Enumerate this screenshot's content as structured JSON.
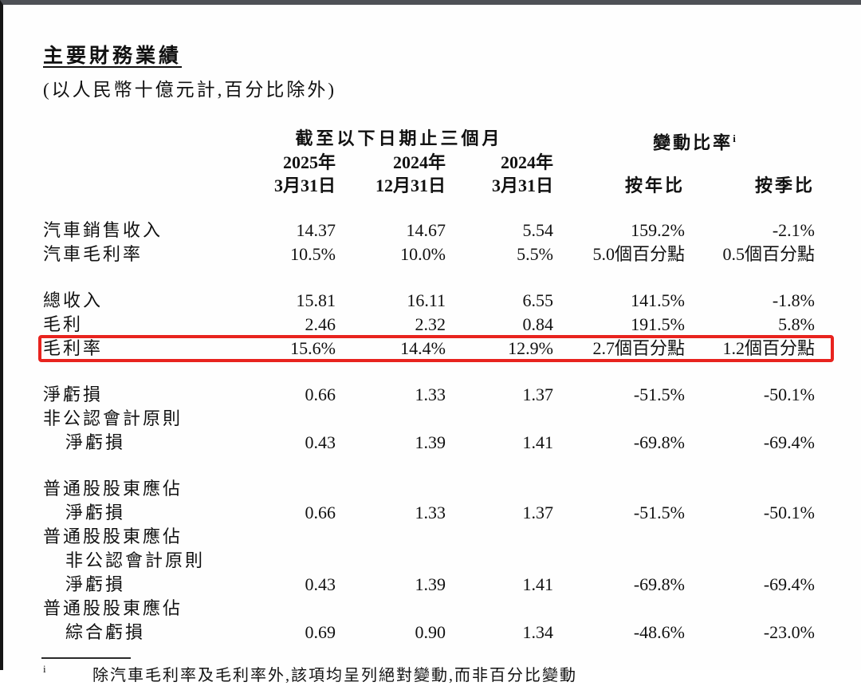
{
  "theme": {
    "accent_red": "#e8231e",
    "text_color": "#111111",
    "frame_top_color": "#4e5156",
    "frame_left_color": "#161616"
  },
  "page": {
    "title": "主要財務業績",
    "subtitle": "(以人民幣十億元計,百分比除外)"
  },
  "table": {
    "span_headers": {
      "period": "截至以下日期止三個月",
      "change": "變動比率",
      "change_sup": "i"
    },
    "columns": [
      {
        "line1": "2025年",
        "line2": "3月31日"
      },
      {
        "line1": "2024年",
        "line2": "12月31日"
      },
      {
        "line1": "2024年",
        "line2": "3月31日"
      },
      {
        "line1": "",
        "line2": "按年比"
      },
      {
        "line1": "",
        "line2": "按季比"
      }
    ],
    "rows": [
      {
        "label": "汽車銷售收入",
        "indent": false,
        "highlight": false,
        "values": [
          "14.37",
          "14.67",
          "5.54",
          "159.2%",
          "-2.1%"
        ]
      },
      {
        "label": "汽車毛利率",
        "indent": false,
        "highlight": false,
        "values": [
          "10.5%",
          "10.0%",
          "5.5%",
          "5.0個百分點",
          "0.5個百分點"
        ]
      },
      {
        "label": "總收入",
        "indent": false,
        "highlight": false,
        "values": [
          "15.81",
          "16.11",
          "6.55",
          "141.5%",
          "-1.8%"
        ]
      },
      {
        "label": "毛利",
        "indent": false,
        "highlight": false,
        "values": [
          "2.46",
          "2.32",
          "0.84",
          "191.5%",
          "5.8%"
        ]
      },
      {
        "label": "毛利率",
        "indent": false,
        "highlight": true,
        "values": [
          "15.6%",
          "14.4%",
          "12.9%",
          "2.7個百分點",
          "1.2個百分點"
        ]
      },
      {
        "label": "淨虧損",
        "indent": false,
        "highlight": false,
        "values": [
          "0.66",
          "1.33",
          "1.37",
          "-51.5%",
          "-50.1%"
        ]
      },
      {
        "label": "非公認會計原則",
        "indent": false,
        "highlight": false,
        "values": [
          "",
          "",
          "",
          "",
          ""
        ]
      },
      {
        "label": "淨虧損",
        "indent": true,
        "highlight": false,
        "values": [
          "0.43",
          "1.39",
          "1.41",
          "-69.8%",
          "-69.4%"
        ]
      },
      {
        "label": "普通股股東應佔",
        "indent": false,
        "highlight": false,
        "values": [
          "",
          "",
          "",
          "",
          ""
        ]
      },
      {
        "label": "淨虧損",
        "indent": true,
        "highlight": false,
        "values": [
          "0.66",
          "1.33",
          "1.37",
          "-51.5%",
          "-50.1%"
        ]
      },
      {
        "label": "普通股股東應佔",
        "indent": false,
        "highlight": false,
        "values": [
          "",
          "",
          "",
          "",
          ""
        ]
      },
      {
        "label": "非公認會計原則",
        "indent": true,
        "highlight": false,
        "values": [
          "",
          "",
          "",
          "",
          ""
        ]
      },
      {
        "label": "淨虧損",
        "indent": true,
        "highlight": false,
        "values": [
          "0.43",
          "1.39",
          "1.41",
          "-69.8%",
          "-69.4%"
        ]
      },
      {
        "label": "普通股股東應佔",
        "indent": false,
        "highlight": false,
        "values": [
          "",
          "",
          "",
          "",
          ""
        ]
      },
      {
        "label": "綜合虧損",
        "indent": true,
        "highlight": false,
        "values": [
          "0.69",
          "0.90",
          "1.34",
          "-48.6%",
          "-23.0%"
        ]
      }
    ]
  },
  "footnote": {
    "marker": "i",
    "text": "除汽車毛利率及毛利率外,該項均呈列絕對變動,而非百分比變動"
  }
}
